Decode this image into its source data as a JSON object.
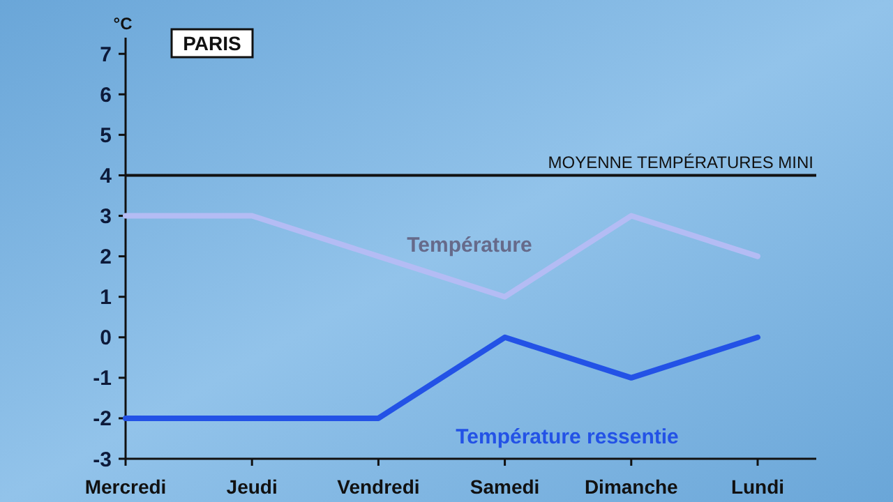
{
  "chart_data": {
    "type": "line",
    "title": "PARIS",
    "ylabel": "°C",
    "categories": [
      "Mercredi",
      "Jeudi",
      "Vendredi",
      "Samedi",
      "Dimanche",
      "Lundi"
    ],
    "series": [
      {
        "name": "Température",
        "color": "#b4bcf4",
        "values": [
          3,
          3,
          2,
          1,
          3,
          2
        ]
      },
      {
        "name": "Température ressentie",
        "color": "#2352e6",
        "values": [
          -2,
          -2,
          -2,
          0,
          -1,
          0
        ]
      }
    ],
    "ylim": [
      -3,
      7.4
    ],
    "yticks": [
      -3,
      -2,
      -1,
      0,
      1,
      2,
      3,
      4,
      5,
      6,
      7
    ],
    "ref_lines": [
      {
        "axis": "y",
        "value": 4,
        "label": "MOYENNE TEMPÉRATURES MINI",
        "color": "#111111"
      }
    ],
    "grid": false,
    "legend": false,
    "marker": "none",
    "line_style": "solid"
  }
}
